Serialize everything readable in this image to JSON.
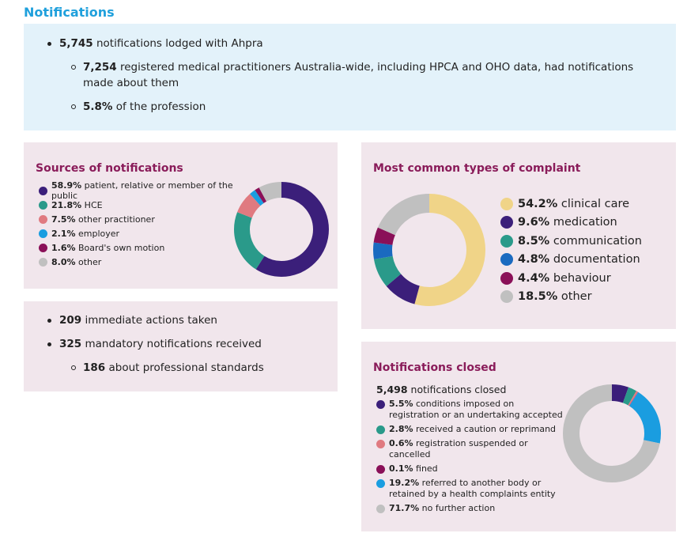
{
  "page_title": "Notifications",
  "summary": {
    "b1_num": "5,745",
    "b1_text": " notifications lodged with Ahpra",
    "b2_num": "7,254",
    "b2_text": " registered medical practitioners Australia-wide, including HPCA and OHO data, had notifications made about them",
    "b3_num": "5.8%",
    "b3_text": " of the profession"
  },
  "actions": {
    "b1_num": "209",
    "b1_text": " immediate actions taken",
    "b2_num": "325",
    "b2_text": " mandatory notifications received",
    "b3_num": "186",
    "b3_text": " about professional standards"
  },
  "chart_data": [
    {
      "type": "pie",
      "donut": true,
      "title": "Sources of notifications",
      "slices": [
        {
          "pct": "58.9%",
          "label": " patient, relative or member of the public",
          "value": 58.9,
          "color": "#3b1f7a"
        },
        {
          "pct": "21.8%",
          "label": " HCE",
          "value": 21.8,
          "color": "#2a9a8a"
        },
        {
          "pct": "7.5%",
          "label": " other practitioner",
          "value": 7.5,
          "color": "#e07a80"
        },
        {
          "pct": "2.1%",
          "label": " employer",
          "value": 2.1,
          "color": "#1a9de0"
        },
        {
          "pct": "1.6%",
          "label": " Board's own motion",
          "value": 1.6,
          "color": "#8a1058"
        },
        {
          "pct": "8.0%",
          "label": " other",
          "value": 8.0,
          "color": "#c0c0c0"
        }
      ]
    },
    {
      "type": "pie",
      "donut": true,
      "title": "Most common types of complaint",
      "slices": [
        {
          "pct": "54.2%",
          "label": " clinical care",
          "value": 54.2,
          "color": "#f0d488"
        },
        {
          "pct": "9.6%",
          "label": " medication",
          "value": 9.6,
          "color": "#3b1f7a"
        },
        {
          "pct": "8.5%",
          "label": " communication",
          "value": 8.5,
          "color": "#2a9a8a"
        },
        {
          "pct": "4.8%",
          "label": " documentation",
          "value": 4.8,
          "color": "#1a6ac0"
        },
        {
          "pct": "4.4%",
          "label": " behaviour",
          "value": 4.4,
          "color": "#8a1058"
        },
        {
          "pct": "18.5%",
          "label": " other",
          "value": 18.5,
          "color": "#c0c0c0"
        }
      ]
    },
    {
      "type": "pie",
      "donut": true,
      "title": "Notifications closed",
      "subtitle_num": "5,498",
      "subtitle_text": " notifications closed",
      "slices": [
        {
          "pct": "5.5%",
          "label": " conditions imposed on registration or an undertaking accepted",
          "value": 5.5,
          "color": "#3b1f7a"
        },
        {
          "pct": "2.8%",
          "label": " received a caution or reprimand",
          "value": 2.8,
          "color": "#2a9a8a"
        },
        {
          "pct": "0.6%",
          "label": " registration suspended or cancelled",
          "value": 0.6,
          "color": "#e07a80"
        },
        {
          "pct": "0.1%",
          "label": " fined",
          "value": 0.1,
          "color": "#8a1058"
        },
        {
          "pct": "19.2%",
          "label": " referred to another body or retained by a health complaints entity",
          "value": 19.2,
          "color": "#1a9de0"
        },
        {
          "pct": "71.7%",
          "label": " no further action",
          "value": 71.7,
          "color": "#c0c0c0"
        }
      ]
    }
  ]
}
